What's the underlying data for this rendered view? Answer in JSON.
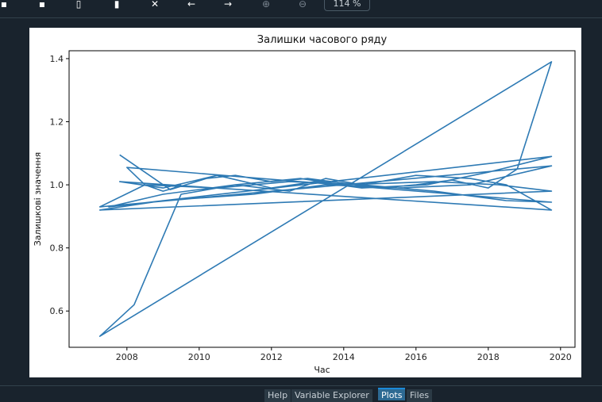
{
  "toolbar": {
    "buttons": [
      {
        "name": "save-icon",
        "glyph": "▪"
      },
      {
        "name": "save-all-icon",
        "glyph": "▪"
      },
      {
        "name": "copy-icon",
        "glyph": "▯"
      },
      {
        "name": "delete-icon",
        "glyph": "▮"
      },
      {
        "name": "delete-all-icon",
        "glyph": "✕"
      },
      {
        "name": "previous-icon",
        "glyph": "←"
      },
      {
        "name": "next-icon",
        "glyph": "→"
      },
      {
        "name": "zoom-in-icon",
        "glyph": "⊕"
      },
      {
        "name": "zoom-out-icon",
        "glyph": "⊖"
      }
    ],
    "zoom_level": "114 %"
  },
  "tabs": [
    {
      "label": "Help",
      "active": false
    },
    {
      "label": "Variable Explorer",
      "active": false
    },
    {
      "label": "Plots",
      "active": true
    },
    {
      "label": "Files",
      "active": false
    }
  ],
  "chart_data": {
    "type": "line",
    "title": "Залишки часового ряду",
    "xlabel": "Час",
    "ylabel": "Залишкові значення",
    "xlim": [
      2006.4,
      2020.4
    ],
    "ylim": [
      0.485,
      1.425
    ],
    "xticks": [
      2008,
      2010,
      2012,
      2014,
      2016,
      2018,
      2020
    ],
    "yticks": [
      0.6,
      0.8,
      1.0,
      1.2,
      1.4
    ],
    "ytick_labels": [
      "0.6",
      "0.8",
      "1.0",
      "1.2",
      "1.4"
    ],
    "grid": false,
    "color": "#2e7ab4",
    "series": [
      {
        "name": "",
        "x": [
          2007.8,
          2008.5,
          2009.2,
          2010.2,
          2011.0,
          2012.0,
          2013.0,
          2014.0,
          2015.0,
          2016.0,
          2017.0,
          2018.0,
          2018.8,
          2019.75,
          2007.25,
          2008.2,
          2009.5,
          2011.0,
          2012.5,
          2013.5,
          2014.5,
          2016.0,
          2017.5,
          2018.5,
          2019.75,
          2007.8,
          2009.0,
          2010.5,
          2012.0,
          2013.2,
          2014.5,
          2016.3,
          2018.0,
          2019.75,
          2007.5,
          2009.0,
          2011.0,
          2012.8,
          2014.0,
          2016.5,
          2018.3,
          2019.75,
          2007.25,
          2009.0,
          2011.5,
          2013.5,
          2015.5,
          2017.5,
          2019.75,
          2007.25,
          2008.5,
          2010.5,
          2012.5,
          2014.5,
          2016.5,
          2018.5,
          2019.75,
          2008.0,
          2008.5,
          2009.0,
          2009.3,
          2009.5
        ],
        "y": [
          1.095,
          1.04,
          0.985,
          1.02,
          1.03,
          1.01,
          1.02,
          1.005,
          0.99,
          1.0,
          1.015,
          0.99,
          1.05,
          1.39,
          0.52,
          0.62,
          0.97,
          1.0,
          0.98,
          1.02,
          1.0,
          1.03,
          1.02,
          1.0,
          0.92,
          1.01,
          0.99,
          1.03,
          0.99,
          1.01,
          0.99,
          1.0,
          1.04,
          1.09,
          0.93,
          0.97,
          1.0,
          1.02,
          1.0,
          1.01,
          1.0,
          0.98,
          0.92,
          0.95,
          0.97,
          1.0,
          0.99,
          1.0,
          1.06,
          0.93,
          1.0,
          0.99,
          1.01,
          1.0,
          0.98,
          0.95,
          0.945,
          1.055,
          1.0,
          0.98,
          0.99,
          1.0
        ]
      }
    ]
  }
}
